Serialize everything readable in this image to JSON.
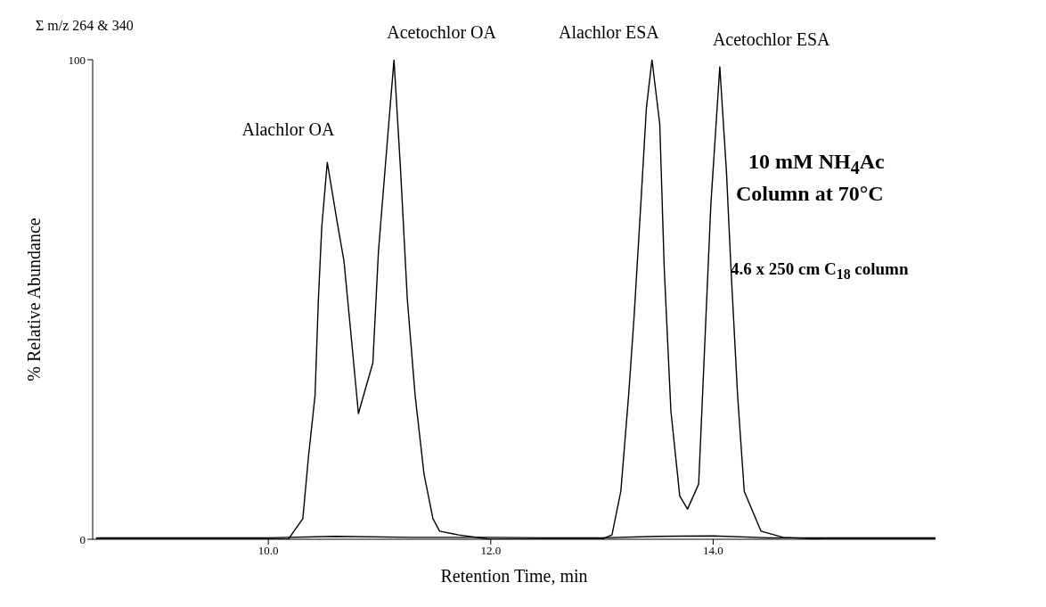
{
  "chart_data": {
    "type": "line",
    "xlabel": "Retention Time, min",
    "ylabel": "% Relative Abundance",
    "xlim": [
      8.42,
      16.0
    ],
    "xticks": [
      {
        "value": 10,
        "label": "10.0"
      },
      {
        "value": 12,
        "label": "12.0"
      },
      {
        "value": 14,
        "label": "14.0"
      }
    ],
    "ylim": [
      0,
      100
    ],
    "yticks": [
      0,
      100
    ],
    "annotations": [
      "Σ m/z 264 & 340",
      "10 mM NH$_{4}$Ac",
      "Column at 70°C",
      "4.6 x 250 cm C$_{18}$ column",
      {
        "text": "Alachlor OA",
        "x": 10.53,
        "y": 78.6
      },
      {
        "text": "Acetochlor OA",
        "x": 11.13,
        "y": 100
      },
      {
        "text": "Alachlor ESA",
        "x": 13.45,
        "y": 100
      },
      {
        "text": "Acetochlor ESA",
        "x": 14.06,
        "y": 98.5
      }
    ],
    "series": [
      {
        "color": "#000000",
        "x": [
          8.45,
          9.0,
          9.5,
          10.0,
          10.18,
          10.31,
          10.36,
          10.42,
          10.45,
          10.48,
          10.53,
          10.62,
          10.68,
          10.74,
          10.81,
          10.94,
          10.99,
          11.07,
          11.13,
          11.19,
          11.25,
          11.32,
          11.4,
          11.48,
          11.54,
          11.71,
          12.0,
          12.5,
          13.0,
          13.09,
          13.17,
          13.24,
          13.29,
          13.35,
          13.4,
          13.45,
          13.52,
          13.56,
          13.62,
          13.7,
          13.77,
          13.87,
          13.93,
          13.98,
          14.06,
          14.12,
          14.16,
          14.22,
          14.28,
          14.43,
          14.63,
          15.0,
          15.5,
          16.0
        ],
        "values": [
          0,
          0,
          0,
          0,
          0,
          4.3,
          17,
          30,
          50,
          65,
          78.6,
          66,
          58,
          43.5,
          26.2,
          36.8,
          60,
          83,
          100,
          76.6,
          50,
          30,
          13.6,
          4.3,
          1.7,
          0.9,
          0,
          0,
          0,
          0.9,
          10,
          30,
          46.7,
          70,
          90,
          100,
          86.6,
          56.7,
          26.8,
          9,
          6.3,
          11.5,
          43.5,
          70,
          98.5,
          76.6,
          56.7,
          30,
          10,
          1.7,
          0.4,
          0,
          0,
          0
        ]
      },
      {
        "color": "#000000",
        "x": [
          8.45,
          9.5,
          10.0,
          10.6,
          11.3,
          12.0,
          12.5,
          13.0,
          13.5,
          14.0,
          14.5,
          15.0,
          16.0
        ],
        "values": [
          0.3,
          0.3,
          0.3,
          0.6,
          0.4,
          0.4,
          0.3,
          0.3,
          0.6,
          0.7,
          0.3,
          0.3,
          0.3
        ]
      }
    ]
  }
}
